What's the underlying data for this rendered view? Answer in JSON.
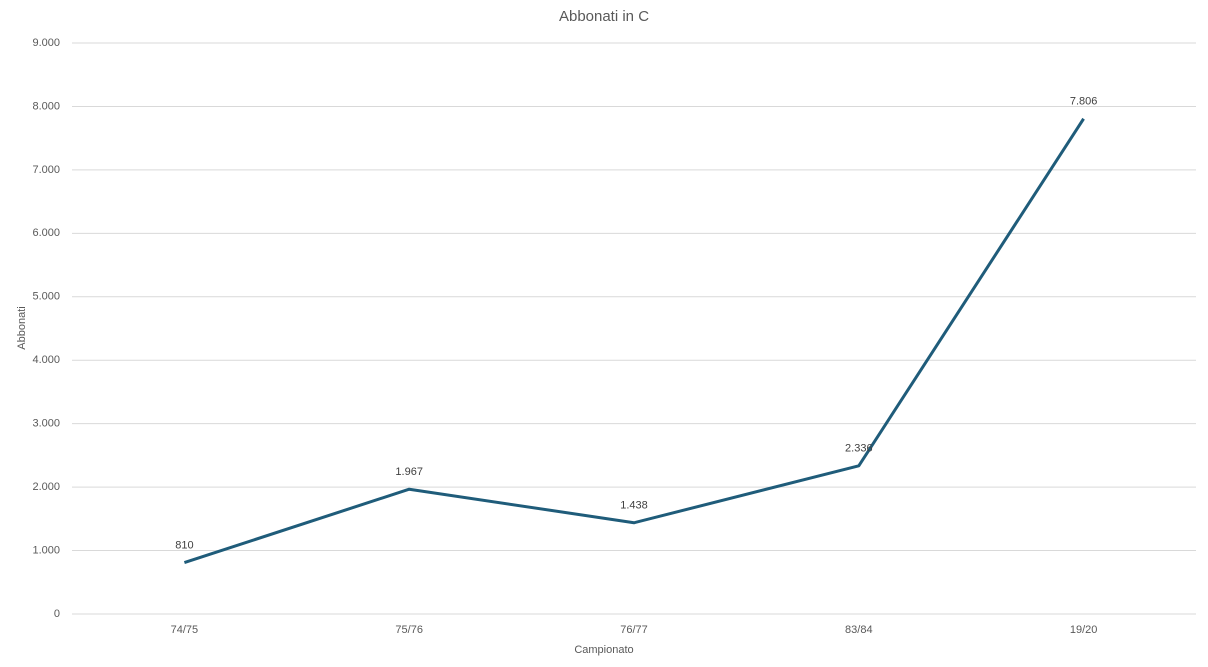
{
  "chart_data": {
    "type": "line",
    "title": "Abbonati in C",
    "x_label": "Campionato",
    "y_label": "Abbonati",
    "categories": [
      "74/75",
      "75/76",
      "76/77",
      "83/84",
      "19/20"
    ],
    "series": [
      {
        "name": "Abbonati",
        "color": "#1f5c7a",
        "values": [
          810,
          1967,
          1438,
          2336,
          7806
        ],
        "value_labels": [
          "810",
          "1.967",
          "1.438",
          "2.336",
          "7.806"
        ]
      }
    ],
    "ylim": [
      0,
      9000
    ],
    "yticks": [
      0,
      {
        "value": 1000,
        "label": "1.000"
      },
      {
        "value": 2000,
        "label": "2.000"
      },
      {
        "value": 3000,
        "label": "3.000"
      },
      {
        "value": 4000,
        "label": "4.000"
      },
      {
        "value": 5000,
        "label": "5.000"
      },
      {
        "value": 6000,
        "label": "6.000"
      },
      {
        "value": 7000,
        "label": "7.000"
      },
      {
        "value": 8000,
        "label": "8.000"
      },
      {
        "value": 9000,
        "label": "9.000"
      }
    ],
    "grid": true
  }
}
